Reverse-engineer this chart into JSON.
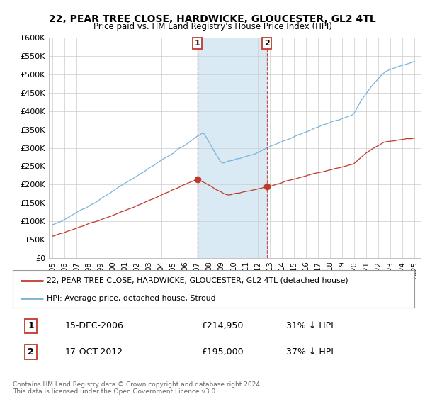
{
  "title": "22, PEAR TREE CLOSE, HARDWICKE, GLOUCESTER, GL2 4TL",
  "subtitle": "Price paid vs. HM Land Registry's House Price Index (HPI)",
  "ytick_values": [
    0,
    50000,
    100000,
    150000,
    200000,
    250000,
    300000,
    350000,
    400000,
    450000,
    500000,
    550000,
    600000
  ],
  "hpi_color": "#7ab4d8",
  "hpi_shade_color": "#daeaf5",
  "price_color": "#c0392b",
  "purchase1_year": 2006.96,
  "purchase2_year": 2012.79,
  "purchase1_price": 214950,
  "purchase2_price": 195000,
  "legend_label_price": "22, PEAR TREE CLOSE, HARDWICKE, GLOUCESTER, GL2 4TL (detached house)",
  "legend_label_hpi": "HPI: Average price, detached house, Stroud",
  "annotation1_text": "15-DEC-2006",
  "annotation1_price_text": "£214,950",
  "annotation1_hpi_text": "31% ↓ HPI",
  "annotation2_text": "17-OCT-2012",
  "annotation2_price_text": "£195,000",
  "annotation2_hpi_text": "37% ↓ HPI",
  "footer": "Contains HM Land Registry data © Crown copyright and database right 2024.\nThis data is licensed under the Open Government Licence v3.0.",
  "background_color": "#ffffff",
  "grid_color": "#cccccc"
}
